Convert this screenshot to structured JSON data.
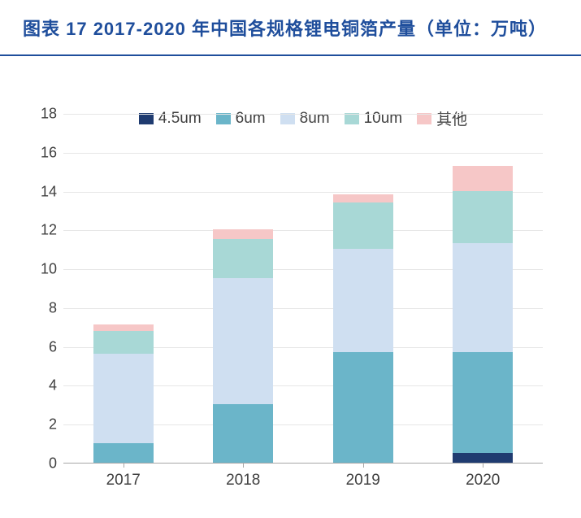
{
  "title": "图表 17  2017-2020 年中国各规格锂电铜箔产量（单位：万吨）",
  "title_color": "#1f4e9c",
  "title_fontsize": 22,
  "chart": {
    "type": "stacked-bar",
    "categories": [
      "2017",
      "2018",
      "2019",
      "2020"
    ],
    "series": [
      {
        "name": "4.5um",
        "color": "#1f3b70",
        "values": [
          0,
          0,
          0,
          0.5
        ]
      },
      {
        "name": "6um",
        "color": "#6bb5c9",
        "values": [
          1.0,
          3.0,
          5.7,
          5.2
        ]
      },
      {
        "name": "8um",
        "color": "#cfdff1",
        "values": [
          4.6,
          6.5,
          5.3,
          5.6
        ]
      },
      {
        "name": "10um",
        "color": "#a8d8d6",
        "values": [
          1.2,
          2.0,
          2.4,
          2.7
        ]
      },
      {
        "name": "其他",
        "color": "#f6c7c7",
        "values": [
          0.3,
          0.5,
          0.4,
          1.3
        ]
      }
    ],
    "ylim": [
      0,
      18
    ],
    "ytick_step": 2,
    "bar_width": 0.5,
    "background_color": "#ffffff",
    "grid_color": "#e6e6e6",
    "axis_color": "#a6a6a6",
    "label_fontsize": 18,
    "label_color": "#404040",
    "legend_fontsize": 19,
    "legend_position": "top"
  }
}
